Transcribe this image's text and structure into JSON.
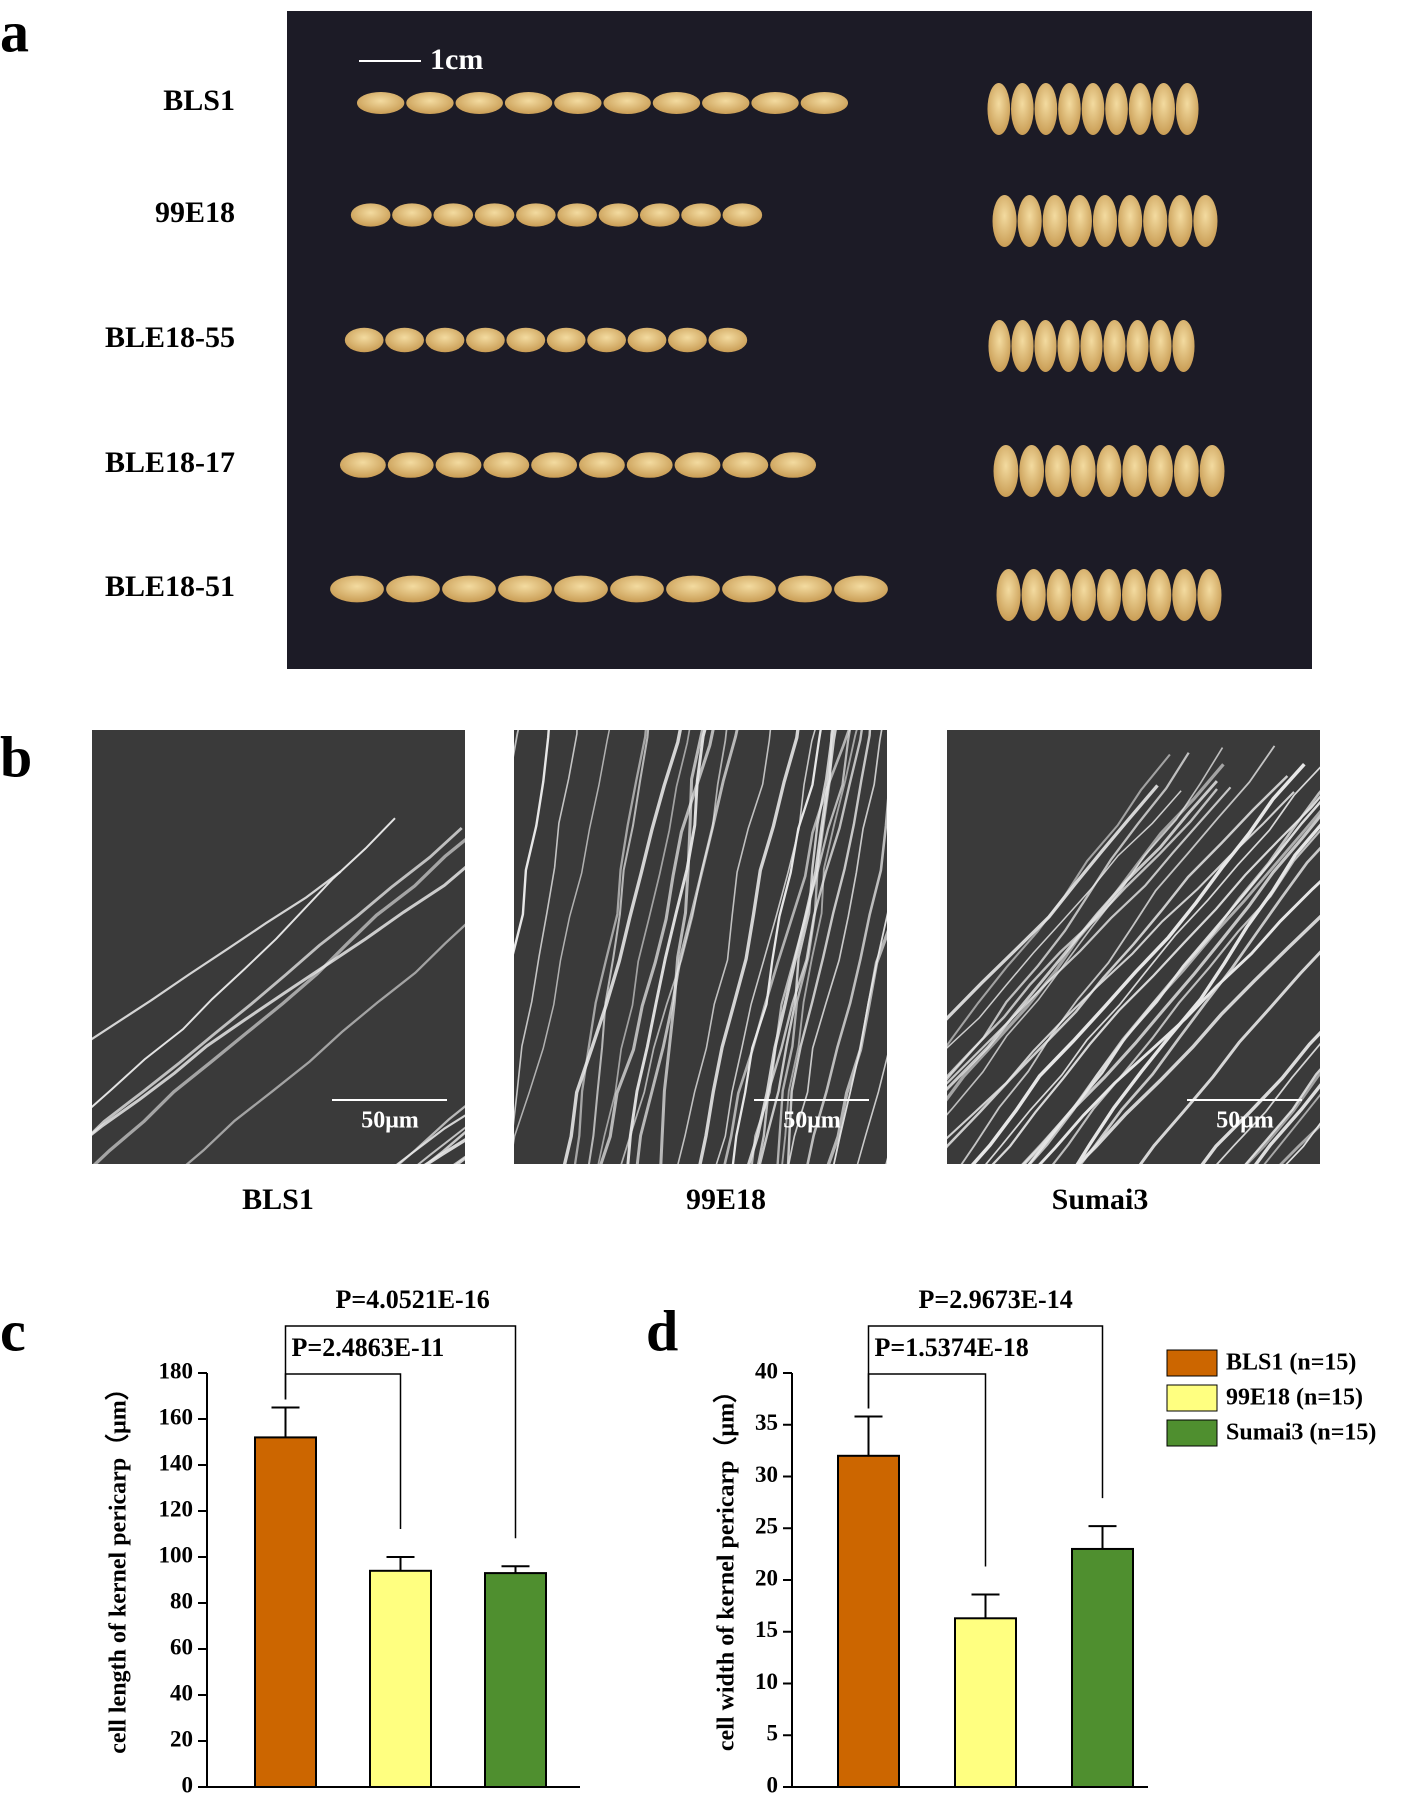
{
  "panel_a": {
    "letter": "a",
    "scale_bar": "1cm",
    "rows": [
      "BLS1",
      "99E18",
      "BLE18-55",
      "BLE18-17",
      "BLE18-51"
    ]
  },
  "panel_b": {
    "letter": "b",
    "images": [
      {
        "label": "BLS1",
        "scale_bar": "50μm"
      },
      {
        "label": "99E18",
        "scale_bar": "50μm"
      },
      {
        "label": "Sumai3",
        "scale_bar": "50μm"
      }
    ]
  },
  "chart_data": [
    {
      "type": "bar",
      "panel_letter": "c",
      "y_label": "cell length of kernel pericarp（μm）",
      "ylim": [
        0,
        180
      ],
      "yticks": [
        0,
        20,
        40,
        60,
        80,
        100,
        120,
        140,
        160,
        180
      ],
      "series": [
        {
          "color": "#cc6600",
          "values": [
            152
          ],
          "errors": [
            13
          ]
        },
        {
          "color": "#ffff80",
          "values": [
            94
          ],
          "errors": [
            6
          ]
        },
        {
          "color": "#4f8f2f",
          "values": [
            93
          ],
          "errors": [
            3
          ]
        }
      ],
      "annotations": [
        "P=2.4863E-11",
        "P=4.0521E-16"
      ]
    },
    {
      "type": "bar",
      "panel_letter": "d",
      "y_label": "cell width of kernel pericarp（μm）",
      "ylim": [
        0,
        40
      ],
      "yticks": [
        0,
        5,
        10,
        15,
        20,
        25,
        30,
        35,
        40
      ],
      "series": [
        {
          "name": "BLS1 (n=15)",
          "color": "#cc6600",
          "values": [
            32
          ],
          "errors": [
            3.8
          ]
        },
        {
          "name": "99E18 (n=15)",
          "color": "#ffff80",
          "values": [
            16.3
          ],
          "errors": [
            2.3
          ]
        },
        {
          "name": "Sumai3 (n=15)",
          "color": "#4f8f2f",
          "values": [
            23
          ],
          "errors": [
            2.2
          ]
        }
      ],
      "legend": "right",
      "annotations": [
        "P=1.5374E-18",
        "P=2.9673E-14"
      ]
    }
  ]
}
